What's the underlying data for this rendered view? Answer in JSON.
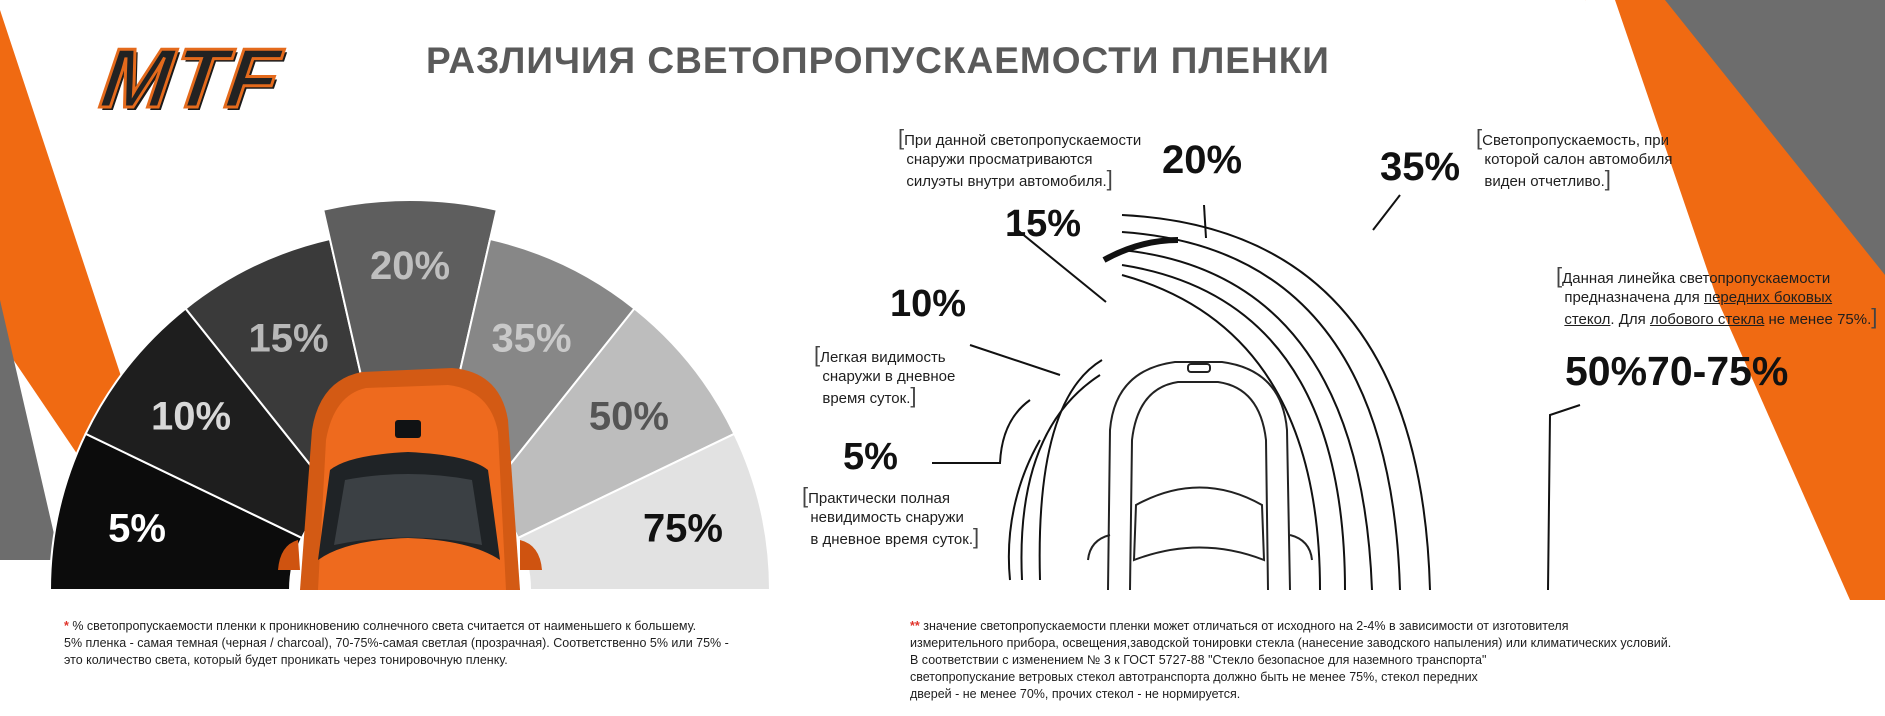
{
  "logo": {
    "text": "MTF"
  },
  "title": "РАЗЛИЧИЯ СВЕТОПРОПУСКАЕМОСТИ ПЛЕНКИ",
  "fan": {
    "segments": [
      {
        "label": "5%",
        "color": "#0c0c0c",
        "text_color": "#ffffff"
      },
      {
        "label": "10%",
        "color": "#1e1e1e",
        "text_color": "#d8d8d8"
      },
      {
        "label": "15%",
        "color": "#3a3a3a",
        "text_color": "#b8b8b8"
      },
      {
        "label": "20%",
        "color": "#5e5e5e",
        "text_color": "#bfbfbf"
      },
      {
        "label": "35%",
        "color": "#878787",
        "text_color": "#c9c9c9"
      },
      {
        "label": "50%",
        "color": "#bdbdbd",
        "text_color": "#555555"
      },
      {
        "label": "75%",
        "color": "#e2e2e2",
        "text_color": "#111111"
      }
    ]
  },
  "diagram": {
    "p5": "5%",
    "p10": "10%",
    "p15": "15%",
    "p20": "20%",
    "p35": "35%",
    "p50_75": "50%70-75%",
    "note_20": [
      "При данной светопропускаемости",
      "снаружи просматриваются",
      "силуэты внутри автомобиля."
    ],
    "note_35": [
      "Светопропускаемость, при",
      "которой салон автомобиля",
      "виден отчетливо."
    ],
    "note_front_1": "Данная линейка светопропускаемости",
    "note_front_2a": "предназначена для ",
    "note_front_2b": "передних боковых",
    "note_front_3a": "стекол",
    "note_front_3b": ". Для ",
    "note_front_3c": "лобового стекла",
    "note_front_3d": " не менее 75%.",
    "note_10": [
      "Легкая видимость",
      "снаружи в дневное",
      "время суток."
    ],
    "note_5": [
      "Практически полная",
      "невидимость снаружи",
      "в дневное время суток."
    ]
  },
  "footnotes": {
    "left_mark": "*",
    "left_lines": [
      " % светопропускаемости пленки к проникновению солнечного света считается от наименьшего к большему.",
      "5% пленка - самая темная (черная / charcoal), 70-75%-самая светлая (прозрачная). Соответственно 5% или 75% -",
      "это количество света, который будет проникать через тонировочную пленку."
    ],
    "right_mark": "**",
    "right_lines": [
      " значение светопропускаемости пленки может отличаться от исходного на 2-4% в зависимости от изготовителя",
      "измерительного прибора, освещения,заводской тонировки стекла (нанесение заводского напыления) или климатических условий.",
      "В соответствии с изменением № 3 к ГОСТ 5727-88 \"Стекло безопасное для наземного транспорта\"",
      "светопропускание ветровых стекол автотранспорта должно быть не менее 75%, стекол передних",
      "дверей - не менее 70%, прочих стекол - не нормируется."
    ]
  },
  "colors": {
    "orange": "#f06a12",
    "gray": "#6d6d6d",
    "title_gray": "#5a5a5a"
  }
}
